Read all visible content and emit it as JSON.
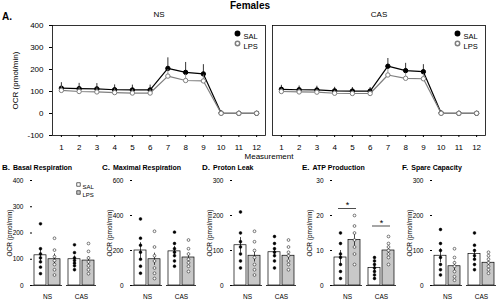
{
  "title": "Females",
  "chart_data": [
    {
      "type": "line",
      "panel_label": "A.",
      "xlabel": "Measurement",
      "ylabel": "OCR (pmol/min)",
      "x": [
        1,
        2,
        3,
        4,
        5,
        6,
        7,
        8,
        9,
        10,
        11,
        12
      ],
      "xlim": [
        0.5,
        12.5
      ],
      "xticks": [
        1,
        2,
        3,
        4,
        5,
        6,
        7,
        8,
        9,
        10,
        11,
        12
      ],
      "ylim": [
        -100,
        400
      ],
      "yticks": [
        -100,
        0,
        100,
        200,
        300,
        400
      ],
      "legend": "top-right",
      "facets": [
        {
          "title": "NS",
          "series": [
            {
              "name": "SAL",
              "color": "#000000",
              "marker": "circle",
              "values": [
                115,
                113,
                112,
                108,
                107,
                107,
                205,
                187,
                180,
                2,
                1,
                1
              ],
              "errors": [
                25,
                24,
                24,
                22,
                22,
                22,
                48,
                45,
                42,
                1,
                1,
                1
              ]
            },
            {
              "name": "LPS",
              "color": "#7f7f7f",
              "marker": "circle-open",
              "values": [
                105,
                100,
                98,
                95,
                93,
                93,
                170,
                150,
                148,
                1,
                1,
                1
              ],
              "errors": [
                20,
                18,
                18,
                17,
                16,
                16,
                30,
                28,
                27,
                1,
                1,
                1
              ]
            }
          ]
        },
        {
          "title": "CAS",
          "series": [
            {
              "name": "SAL",
              "color": "#000000",
              "marker": "circle",
              "values": [
                110,
                108,
                107,
                103,
                102,
                102,
                215,
                195,
                190,
                2,
                1,
                1
              ],
              "errors": [
                18,
                17,
                17,
                16,
                16,
                16,
                35,
                33,
                32,
                1,
                1,
                1
              ]
            },
            {
              "name": "LPS",
              "color": "#7f7f7f",
              "marker": "circle-open",
              "values": [
                100,
                98,
                97,
                92,
                91,
                91,
                175,
                160,
                158,
                1,
                1,
                1
              ],
              "errors": [
                12,
                12,
                12,
                11,
                11,
                11,
                25,
                22,
                22,
                1,
                1,
                1
              ]
            }
          ]
        }
      ]
    },
    {
      "type": "bar",
      "panel_label": "B.",
      "title": "Basal Respiration",
      "ylabel": "OCR (pmol/min)",
      "categories": [
        "NS",
        "CAS"
      ],
      "ylim": [
        0,
        400
      ],
      "yticks": [
        0,
        100,
        200,
        300,
        400
      ],
      "legend": "top-right",
      "series": [
        {
          "name": "SAL",
          "color": "#ffffff",
          "marker": "circle",
          "values": [
            115,
            100
          ],
          "errors": [
            25,
            13
          ],
          "points": [
            [
              45,
              70,
              90,
              105,
              120,
              140,
              235
            ],
            [
              60,
              75,
              85,
              95,
              105,
              125,
              155
            ]
          ]
        },
        {
          "name": "LPS",
          "color": "#c8c8c8",
          "marker": "circle-open",
          "values": [
            100,
            95
          ],
          "errors": [
            20,
            15
          ],
          "points": [
            [
              40,
              60,
              80,
              95,
              110,
              135,
              180
            ],
            [
              45,
              60,
              75,
              90,
              105,
              130,
              160
            ]
          ]
        }
      ]
    },
    {
      "type": "bar",
      "panel_label": "C.",
      "title": "Maximal Respiration",
      "ylabel": "OCR (pmol/min)",
      "categories": [
        "NS",
        "CAS"
      ],
      "ylim": [
        0,
        600
      ],
      "yticks": [
        0,
        200,
        400,
        600
      ],
      "series": [
        {
          "name": "SAL",
          "color": "#ffffff",
          "marker": "circle",
          "values": [
            200,
            195
          ],
          "errors": [
            45,
            28
          ],
          "points": [
            [
              70,
              110,
              150,
              190,
              230,
              270,
              380
            ],
            [
              110,
              140,
              170,
              190,
              210,
              240,
              305
            ]
          ]
        },
        {
          "name": "LPS",
          "color": "#c8c8c8",
          "marker": "circle-open",
          "values": [
            150,
            160
          ],
          "errors": [
            35,
            25
          ],
          "points": [
            [
              40,
              70,
              100,
              140,
              170,
              220,
              310
            ],
            [
              80,
              110,
              130,
              150,
              180,
              210,
              260
            ]
          ]
        }
      ]
    },
    {
      "type": "bar",
      "panel_label": "D.",
      "title": "Proton Leak",
      "ylabel": "OCR (pmol/min)",
      "categories": [
        "NS",
        "CAS"
      ],
      "ylim": [
        0,
        300
      ],
      "yticks": [
        0,
        100,
        200,
        300
      ],
      "series": [
        {
          "name": "SAL",
          "color": "#ffffff",
          "marker": "circle",
          "values": [
            115,
            95
          ],
          "errors": [
            22,
            12
          ],
          "points": [
            [
              50,
              70,
              90,
              110,
              125,
              150,
              210
            ],
            [
              50,
              70,
              85,
              95,
              105,
              120,
              140
            ]
          ]
        },
        {
          "name": "LPS",
          "color": "#c8c8c8",
          "marker": "circle-open",
          "values": [
            85,
            85
          ],
          "errors": [
            18,
            11
          ],
          "points": [
            [
              30,
              45,
              60,
              80,
              100,
              125,
              155
            ],
            [
              45,
              60,
              70,
              85,
              95,
              110,
              130
            ]
          ]
        }
      ]
    },
    {
      "type": "bar",
      "panel_label": "E.",
      "title": "ATP Production",
      "ylabel": "OCR (pmol/min)",
      "categories": [
        "NS",
        "CAS"
      ],
      "ylim": [
        0,
        30
      ],
      "yticks": [
        0,
        10,
        20,
        30
      ],
      "annotations": [
        {
          "text": "*",
          "category": "NS",
          "y": 22
        },
        {
          "text": "*",
          "category": "CAS",
          "y": 17
        }
      ],
      "series": [
        {
          "name": "SAL",
          "color": "#ffffff",
          "marker": "circle",
          "values": [
            8,
            5
          ],
          "errors": [
            2,
            1
          ],
          "points": [
            [
              2,
              4,
              6,
              8,
              9,
              12,
              15
            ],
            [
              2,
              3,
              4,
              5,
              6,
              7,
              8
            ]
          ]
        },
        {
          "name": "LPS",
          "color": "#c8c8c8",
          "marker": "circle-open",
          "values": [
            13,
            10
          ],
          "errors": [
            2,
            1
          ],
          "points": [
            [
              6,
              9,
              11,
              13,
              15,
              17,
              20
            ],
            [
              6,
              8,
              9,
              10,
              11,
              12,
              14
            ]
          ]
        }
      ]
    },
    {
      "type": "bar",
      "panel_label": "F.",
      "title": "Spare Capacity",
      "ylabel": "OCR (pmol/min)",
      "categories": [
        "NS",
        "CAS"
      ],
      "ylim": [
        0,
        300
      ],
      "yticks": [
        0,
        100,
        200,
        300
      ],
      "series": [
        {
          "name": "SAL",
          "color": "#ffffff",
          "marker": "circle",
          "values": [
            85,
            90
          ],
          "errors": [
            20,
            13
          ],
          "points": [
            [
              30,
              45,
              60,
              80,
              100,
              120,
              160
            ],
            [
              45,
              60,
              75,
              85,
              100,
              115,
              150
            ]
          ]
        },
        {
          "name": "LPS",
          "color": "#c8c8c8",
          "marker": "circle-open",
          "values": [
            55,
            65
          ],
          "errors": [
            14,
            8
          ],
          "points": [
            [
              15,
              25,
              40,
              55,
              65,
              80,
              105
            ],
            [
              35,
              45,
              55,
              65,
              75,
              85,
              95
            ]
          ]
        }
      ]
    }
  ]
}
